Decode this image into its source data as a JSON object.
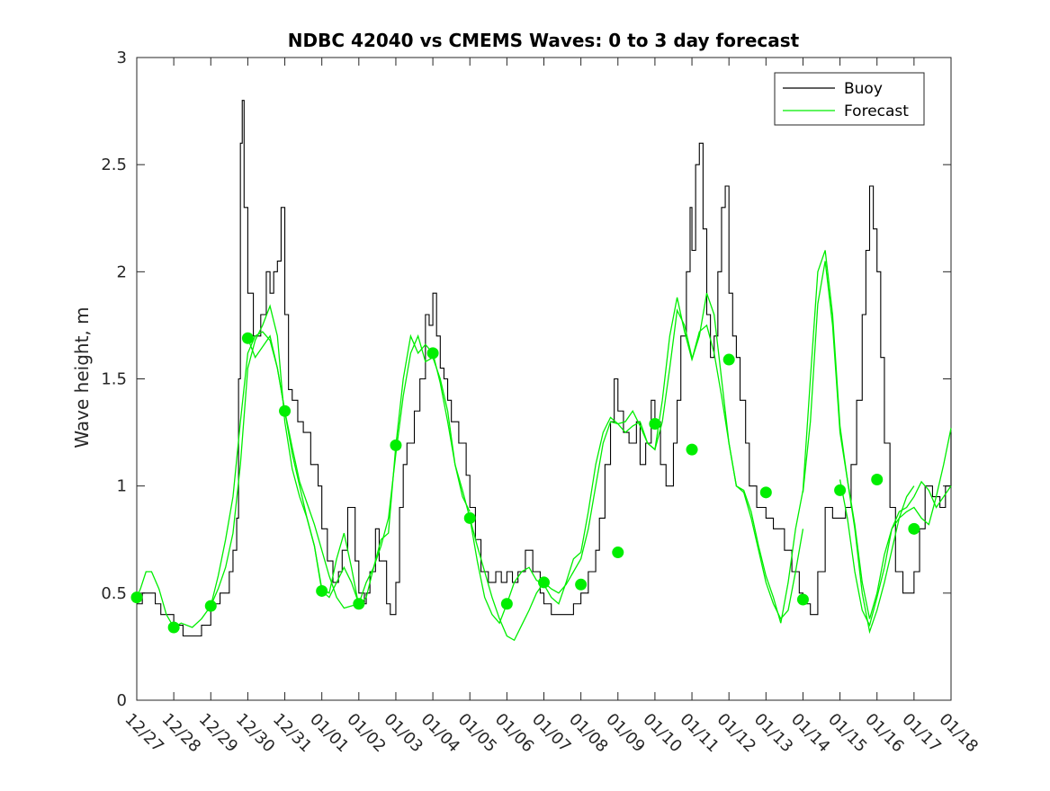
{
  "chart_data": {
    "type": "line",
    "title": "NDBC 42040 vs CMEMS Waves: 0 to 3 day forecast",
    "xlabel": "",
    "ylabel": "Wave height, m",
    "ylim": [
      0,
      3
    ],
    "yticks": [
      0,
      0.5,
      1,
      1.5,
      2,
      2.5,
      3
    ],
    "ytick_labels": [
      "0",
      "0.5",
      "1",
      "1.5",
      "2",
      "2.5",
      "3"
    ],
    "xlim": [
      0,
      22
    ],
    "xticks": [
      0,
      1,
      2,
      3,
      4,
      5,
      6,
      7,
      8,
      9,
      10,
      11,
      12,
      13,
      14,
      15,
      16,
      17,
      18,
      19,
      20,
      21,
      22
    ],
    "xtick_labels": [
      "12/27",
      "12/28",
      "12/29",
      "12/30",
      "12/31",
      "01/01",
      "01/02",
      "01/03",
      "01/04",
      "01/05",
      "01/06",
      "01/07",
      "01/08",
      "01/09",
      "01/10",
      "01/11",
      "01/12",
      "01/13",
      "01/14",
      "01/15",
      "01/16",
      "01/17",
      "01/18"
    ],
    "x_units": "days since 12/27",
    "grid": false,
    "legend": {
      "position": "top-right",
      "entries": [
        "Buoy",
        "Forecast"
      ]
    },
    "colors": {
      "buoy": "#000000",
      "forecast": "#00ee00"
    },
    "series": [
      {
        "name": "Buoy",
        "x": [
          0,
          0.15,
          0.25,
          0.5,
          0.65,
          0.9,
          1.0,
          1.1,
          1.25,
          1.5,
          1.75,
          2.0,
          2.1,
          2.25,
          2.5,
          2.6,
          2.7,
          2.75,
          2.8,
          2.85,
          2.9,
          3.0,
          3.15,
          3.35,
          3.5,
          3.6,
          3.7,
          3.8,
          3.9,
          4.0,
          4.1,
          4.2,
          4.35,
          4.5,
          4.7,
          4.9,
          5.0,
          5.15,
          5.3,
          5.45,
          5.55,
          5.7,
          5.9,
          6.0,
          6.15,
          6.2,
          6.3,
          6.45,
          6.55,
          6.75,
          6.85,
          7.0,
          7.1,
          7.2,
          7.3,
          7.5,
          7.65,
          7.8,
          7.9,
          8.0,
          8.1,
          8.2,
          8.3,
          8.4,
          8.5,
          8.7,
          8.9,
          9.0,
          9.15,
          9.3,
          9.5,
          9.7,
          9.85,
          10.0,
          10.15,
          10.3,
          10.5,
          10.7,
          10.9,
          11.0,
          11.2,
          11.5,
          11.8,
          12.0,
          12.2,
          12.4,
          12.5,
          12.65,
          12.8,
          12.9,
          13.0,
          13.15,
          13.3,
          13.5,
          13.6,
          13.75,
          13.9,
          14.0,
          14.15,
          14.3,
          14.5,
          14.6,
          14.7,
          14.85,
          14.95,
          15.0,
          15.1,
          15.2,
          15.3,
          15.4,
          15.5,
          15.6,
          15.7,
          15.8,
          15.9,
          16.0,
          16.1,
          16.2,
          16.3,
          16.45,
          16.55,
          16.75,
          16.95,
          17.0,
          17.2,
          17.5,
          17.7,
          17.9,
          18.0,
          18.2,
          18.4,
          18.6,
          18.8,
          19.0,
          19.15,
          19.3,
          19.45,
          19.6,
          19.7,
          19.8,
          19.9,
          20.0,
          20.1,
          20.2,
          20.35,
          20.5,
          20.7,
          20.85,
          21.0,
          21.15,
          21.3,
          21.5,
          21.7,
          21.85,
          22.0
        ],
        "values": [
          0.45,
          0.5,
          0.5,
          0.45,
          0.4,
          0.4,
          0.35,
          0.35,
          0.3,
          0.3,
          0.35,
          0.45,
          0.45,
          0.5,
          0.6,
          0.7,
          0.85,
          1.5,
          2.6,
          2.8,
          2.3,
          1.9,
          1.7,
          1.8,
          2.0,
          1.9,
          2.0,
          2.05,
          2.3,
          1.8,
          1.45,
          1.4,
          1.3,
          1.25,
          1.1,
          1.0,
          0.8,
          0.65,
          0.55,
          0.6,
          0.7,
          0.9,
          0.65,
          0.5,
          0.45,
          0.5,
          0.6,
          0.8,
          0.65,
          0.45,
          0.4,
          0.55,
          0.9,
          1.1,
          1.2,
          1.35,
          1.5,
          1.8,
          1.75,
          1.9,
          1.7,
          1.55,
          1.5,
          1.4,
          1.3,
          1.2,
          1.05,
          0.9,
          0.75,
          0.6,
          0.55,
          0.6,
          0.55,
          0.6,
          0.55,
          0.6,
          0.7,
          0.6,
          0.5,
          0.45,
          0.4,
          0.4,
          0.45,
          0.5,
          0.6,
          0.7,
          0.85,
          1.1,
          1.3,
          1.5,
          1.35,
          1.25,
          1.2,
          1.3,
          1.1,
          1.2,
          1.4,
          1.3,
          1.1,
          1.0,
          1.2,
          1.4,
          1.7,
          2.0,
          2.3,
          2.1,
          2.5,
          2.6,
          2.2,
          1.8,
          1.6,
          1.7,
          2.0,
          2.3,
          2.4,
          1.9,
          1.7,
          1.6,
          1.4,
          1.2,
          1.0,
          0.9,
          0.9,
          0.85,
          0.8,
          0.7,
          0.6,
          0.5,
          0.45,
          0.4,
          0.6,
          0.9,
          0.85,
          0.85,
          0.9,
          1.1,
          1.4,
          1.8,
          2.1,
          2.4,
          2.2,
          2.0,
          1.6,
          1.2,
          0.9,
          0.6,
          0.5,
          0.5,
          0.6,
          0.8,
          1.0,
          0.95,
          0.9,
          1.0,
          1.25
        ]
      },
      {
        "name": "Forecast",
        "runs": [
          {
            "x": [
              0,
              0.1,
              0.25,
              0.4,
              0.6,
              0.8,
              1.0,
              1.2,
              1.5,
              1.75,
              2.0,
              2.2,
              2.4,
              2.6,
              2.8,
              3.0,
              3.2,
              3.4,
              3.6,
              3.8,
              4.0,
              4.2,
              4.4,
              4.6,
              4.8,
              5.0,
              5.2,
              5.4,
              5.6,
              5.8,
              6.0
            ],
            "values": [
              0.48,
              0.52,
              0.6,
              0.6,
              0.52,
              0.4,
              0.34,
              0.36,
              0.34,
              0.38,
              0.44,
              0.58,
              0.75,
              0.95,
              1.3,
              1.62,
              1.7,
              1.72,
              1.68,
              1.55,
              1.35,
              1.18,
              1.02,
              0.92,
              0.82,
              0.7,
              0.58,
              0.48,
              0.43,
              0.44,
              0.45
            ]
          },
          {
            "x": [
              2.0,
              2.2,
              2.4,
              2.6,
              2.8,
              3.0,
              3.2,
              3.4,
              3.6,
              3.8,
              4.0,
              4.2,
              4.4,
              4.6,
              4.8,
              5.0,
              5.2,
              5.4,
              5.6,
              5.8,
              6.0,
              6.2,
              6.4,
              6.6,
              6.8,
              7.0,
              7.2,
              7.4,
              7.6,
              7.8,
              8.0,
              8.2,
              8.4,
              8.6,
              8.8,
              9.0
            ],
            "values": [
              0.44,
              0.52,
              0.62,
              0.78,
              1.1,
              1.55,
              1.68,
              1.75,
              1.84,
              1.7,
              1.3,
              1.08,
              0.95,
              0.85,
              0.72,
              0.52,
              0.5,
              0.66,
              0.78,
              0.62,
              0.44,
              0.48,
              0.62,
              0.72,
              0.85,
              1.15,
              1.42,
              1.62,
              1.7,
              1.58,
              1.6,
              1.5,
              1.35,
              1.1,
              0.95,
              0.88
            ]
          },
          {
            "x": [
              3.0,
              3.2,
              3.4,
              3.6,
              3.8,
              4.0,
              4.2,
              4.4,
              4.6,
              4.8,
              5.0,
              5.2,
              5.4,
              5.6,
              5.8,
              6.0,
              6.2,
              6.4,
              6.6,
              6.8,
              7.0,
              7.2,
              7.4,
              7.6,
              7.8,
              8.0,
              8.2,
              8.4,
              8.6,
              8.8,
              9.0,
              9.2,
              9.4,
              9.6,
              9.8,
              10.0,
              10.2,
              10.4,
              10.6,
              10.8,
              11.0,
              11.2,
              11.4,
              11.6,
              11.8,
              12.0
            ],
            "values": [
              1.69,
              1.6,
              1.65,
              1.7,
              1.55,
              1.35,
              1.15,
              1.0,
              0.85,
              0.72,
              0.51,
              0.48,
              0.55,
              0.62,
              0.55,
              0.45,
              0.55,
              0.62,
              0.75,
              0.78,
              1.19,
              1.5,
              1.7,
              1.62,
              1.66,
              1.62,
              1.48,
              1.3,
              1.1,
              0.98,
              0.85,
              0.65,
              0.48,
              0.4,
              0.36,
              0.45,
              0.55,
              0.6,
              0.62,
              0.56,
              0.54,
              0.48,
              0.45,
              0.55,
              0.66,
              0.69
            ]
          },
          {
            "x": [
              9.0,
              9.2,
              9.4,
              9.6,
              9.8,
              10.0,
              10.2,
              10.4,
              10.6,
              10.8,
              11.0,
              11.2,
              11.4,
              11.6,
              11.8,
              12.0,
              12.2,
              12.4,
              12.6,
              12.8,
              13.0,
              13.2,
              13.4,
              13.6,
              13.8,
              14.0,
              14.2,
              14.4,
              14.6,
              14.8,
              15.0
            ],
            "values": [
              0.85,
              0.72,
              0.6,
              0.48,
              0.38,
              0.3,
              0.28,
              0.35,
              0.42,
              0.5,
              0.55,
              0.52,
              0.5,
              0.54,
              0.6,
              0.66,
              0.8,
              1.0,
              1.2,
              1.3,
              1.29,
              1.25,
              1.28,
              1.3,
              1.2,
              1.17,
              1.3,
              1.55,
              1.82,
              1.75,
              1.6
            ]
          },
          {
            "x": [
              12.0,
              12.2,
              12.4,
              12.6,
              12.8,
              13.0,
              13.2,
              13.4,
              13.6,
              13.8,
              14.0,
              14.2,
              14.4,
              14.6,
              14.8,
              15.0,
              15.2,
              15.4,
              15.6,
              15.8,
              16.0,
              16.2,
              16.4,
              16.6,
              16.8,
              17.0,
              17.2,
              17.4,
              17.6,
              17.8,
              18.0
            ],
            "values": [
              0.69,
              0.88,
              1.1,
              1.25,
              1.32,
              1.29,
              1.3,
              1.35,
              1.28,
              1.2,
              1.17,
              1.4,
              1.7,
              1.88,
              1.72,
              1.59,
              1.7,
              1.9,
              1.8,
              1.5,
              1.2,
              1.0,
              0.97,
              0.85,
              0.7,
              0.55,
              0.45,
              0.38,
              0.42,
              0.6,
              0.8
            ]
          },
          {
            "x": [
              15.0,
              15.2,
              15.4,
              15.6,
              15.8,
              16.0,
              16.2,
              16.4,
              16.6,
              16.8,
              17.0,
              17.2,
              17.4,
              17.6,
              17.8,
              18.0,
              18.2,
              18.4,
              18.6,
              18.8,
              19.0,
              19.2,
              19.4,
              19.6,
              19.8,
              20.0,
              20.2,
              20.4,
              20.6,
              20.8,
              21.0
            ],
            "values": [
              1.59,
              1.72,
              1.75,
              1.62,
              1.42,
              1.2,
              1.0,
              0.98,
              0.88,
              0.72,
              0.58,
              0.48,
              0.36,
              0.55,
              0.8,
              0.98,
              1.5,
              2.0,
              2.1,
              1.8,
              1.28,
              1.03,
              0.8,
              0.5,
              0.32,
              0.42,
              0.55,
              0.7,
              0.85,
              0.95,
              1.0
            ]
          },
          {
            "x": [
              18.0,
              18.2,
              18.4,
              18.6,
              18.8,
              19.0,
              19.2,
              19.4,
              19.6,
              19.8,
              20.0,
              20.2,
              20.4,
              20.6,
              20.8,
              21.0,
              21.2,
              21.4,
              21.6,
              21.8,
              22.0
            ],
            "values": [
              0.97,
              1.3,
              1.85,
              2.05,
              1.75,
              1.25,
              1.03,
              0.82,
              0.55,
              0.38,
              0.5,
              0.68,
              0.8,
              0.88,
              0.9,
              0.95,
              1.02,
              0.98,
              0.9,
              0.95,
              1.0
            ]
          },
          {
            "x": [
              19.0,
              19.2,
              19.4,
              19.6,
              19.8,
              20.0,
              20.2,
              20.4,
              20.6,
              20.8,
              21.0,
              21.2,
              21.4,
              21.6,
              21.8,
              22.0
            ],
            "values": [
              1.03,
              0.85,
              0.6,
              0.42,
              0.35,
              0.48,
              0.62,
              0.8,
              0.85,
              0.88,
              0.9,
              0.85,
              0.82,
              0.95,
              1.1,
              1.27
            ]
          }
        ],
        "markers": {
          "x": [
            0,
            1,
            2,
            3,
            4,
            5,
            6,
            7,
            8,
            9,
            10,
            11,
            12,
            13,
            14,
            15,
            16,
            17,
            18,
            19,
            20,
            21
          ],
          "values": [
            0.48,
            0.34,
            0.44,
            1.69,
            1.35,
            0.51,
            0.45,
            1.19,
            1.62,
            0.85,
            0.45,
            0.55,
            0.54,
            0.69,
            1.29,
            1.17,
            1.59,
            0.97,
            0.47,
            0.98,
            1.03,
            0.8
          ]
        }
      }
    ]
  }
}
